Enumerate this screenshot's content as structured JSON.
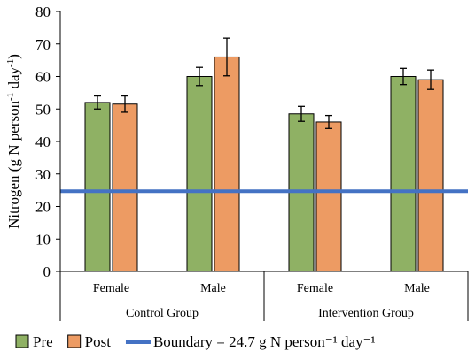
{
  "chart_data": {
    "type": "bar",
    "ylabel": "Nitrogen (g N person⁻¹ day⁻¹)",
    "ylabel_main": "Nitrogen (g N person",
    "ylabel_sup1": "-1",
    "ylabel_mid": " day",
    "ylabel_sup2": "-1",
    "ylabel_end": ")",
    "ylim": [
      0,
      80
    ],
    "yticks": [
      0,
      10,
      20,
      30,
      40,
      50,
      60,
      70,
      80
    ],
    "categories": [
      "Female",
      "Male",
      "Female",
      "Male"
    ],
    "groups": [
      {
        "label": "Control Group",
        "span": [
          0,
          1
        ]
      },
      {
        "label": "Intervention Group",
        "span": [
          2,
          3
        ]
      }
    ],
    "series": [
      {
        "name": "Pre",
        "color": "#8fb164",
        "values": [
          52,
          60,
          48.5,
          60
        ],
        "errors": [
          2,
          2.8,
          2.3,
          2.5
        ]
      },
      {
        "name": "Post",
        "color": "#ed9b63",
        "values": [
          51.5,
          66,
          46,
          59
        ],
        "errors": [
          2.5,
          5.8,
          2,
          3
        ]
      }
    ],
    "reference_line": {
      "name": "Boundary = 24.7 g N person⁻¹ day⁻¹",
      "value": 24.7,
      "color": "#4472c4"
    },
    "legend_position": "bottom",
    "grid": false
  }
}
